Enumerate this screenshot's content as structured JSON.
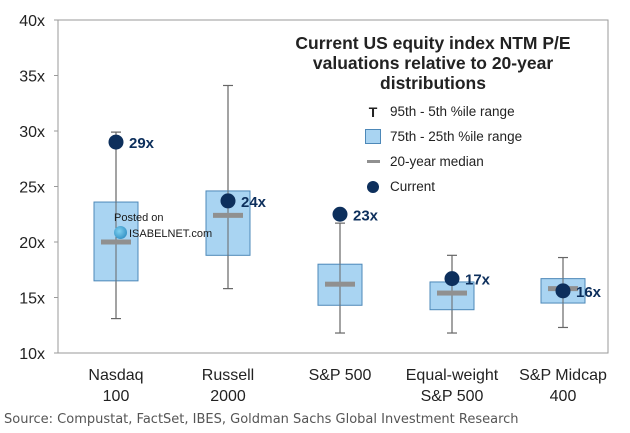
{
  "title": "Current US equity index NTM P/E valuations relative to 20-year distributions",
  "legend": {
    "range": "95th - 5th %ile range",
    "box": "75th - 25th %ile range",
    "median": "20-year median",
    "current": "Current"
  },
  "watermark": {
    "line1": "Posted on",
    "line2": "ISABELNET.com"
  },
  "source": "Source: Compustat, FactSet, IBES, Goldman Sachs Global Investment Research",
  "colors": {
    "box_fill": "#a9d4f2",
    "box_stroke": "#4d88b8",
    "median": "#909090",
    "current": "#0d2f5c",
    "whisker": "#666666"
  },
  "chart_data": {
    "type": "boxplot",
    "ylim": [
      10,
      40
    ],
    "yticks": [
      10,
      15,
      20,
      25,
      30,
      35,
      40
    ],
    "ytick_labels": [
      "10x",
      "15x",
      "20x",
      "25x",
      "30x",
      "35x",
      "40x"
    ],
    "categories": [
      {
        "label": [
          "Nasdaq",
          "100"
        ],
        "p5": 13.1,
        "p25": 16.5,
        "median": 20.0,
        "p75": 23.6,
        "p95": 29.9,
        "current": 29.0,
        "current_label": "29x"
      },
      {
        "label": [
          "Russell",
          "2000"
        ],
        "p5": 15.8,
        "p25": 18.8,
        "median": 22.4,
        "p75": 24.6,
        "p95": 34.1,
        "current": 23.7,
        "current_label": "24x"
      },
      {
        "label": [
          "S&P 500"
        ],
        "p5": 11.8,
        "p25": 14.3,
        "median": 16.2,
        "p75": 18.0,
        "p95": 21.7,
        "current": 22.5,
        "current_label": "23x"
      },
      {
        "label": [
          "Equal-weight",
          "S&P 500"
        ],
        "p5": 11.8,
        "p25": 13.9,
        "median": 15.4,
        "p75": 16.4,
        "p95": 18.8,
        "current": 16.7,
        "current_label": "17x"
      },
      {
        "label": [
          "S&P Midcap",
          "400"
        ],
        "p5": 12.3,
        "p25": 14.5,
        "median": 15.8,
        "p75": 16.7,
        "p95": 18.6,
        "current": 15.6,
        "current_label": "16x"
      }
    ]
  }
}
